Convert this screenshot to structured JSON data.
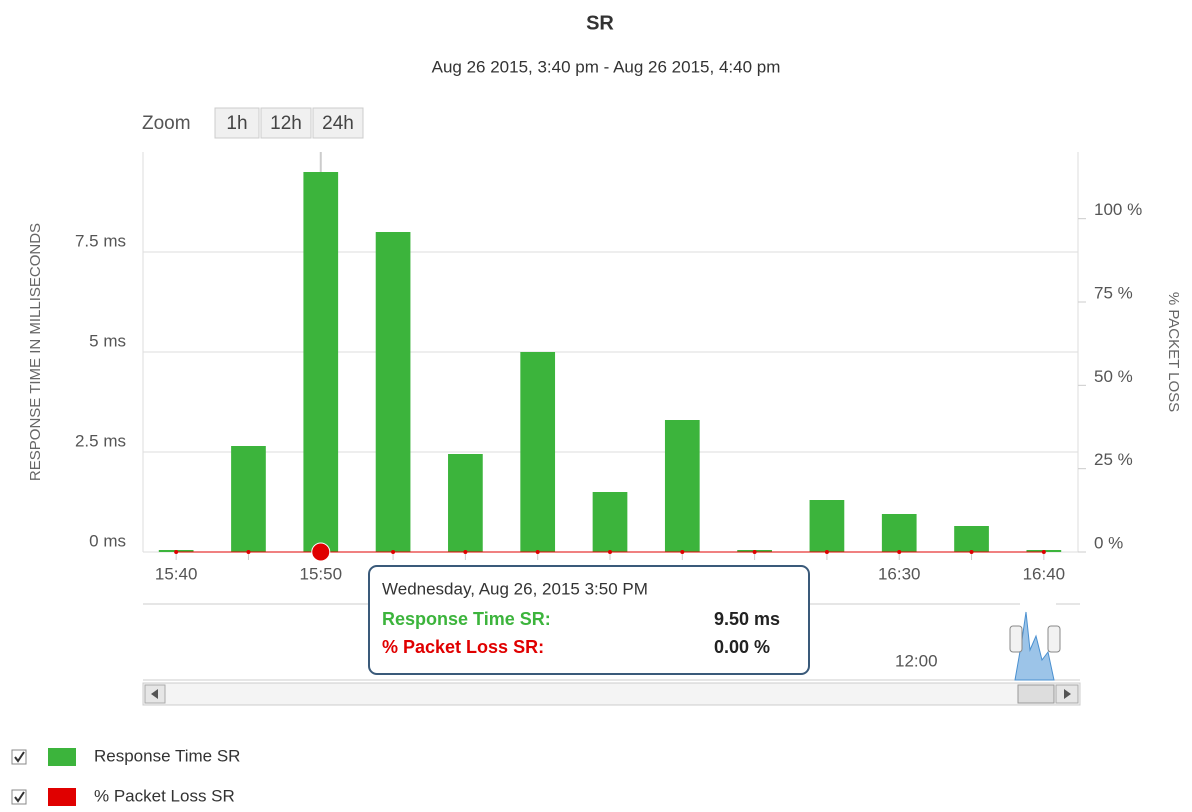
{
  "chart_data": {
    "type": "bar",
    "title": "SR",
    "subtitle": "Aug 26 2015, 3:40 pm - Aug 26 2015, 4:40 pm",
    "zoom": {
      "label": "Zoom",
      "buttons": [
        "1h",
        "12h",
        "24h"
      ]
    },
    "ylabel": "RESPONSE TIME IN MILLISECONDS",
    "y2label": "% PACKET LOSS",
    "categories": [
      "15:40",
      null,
      "15:50",
      null,
      null,
      null,
      null,
      null,
      null,
      null,
      "16:30",
      null,
      "16:40"
    ],
    "series": [
      {
        "name": "Response Time SR",
        "color": "#3cb43c",
        "values": [
          0.05,
          2.65,
          9.5,
          8.0,
          2.45,
          5.0,
          1.5,
          3.3,
          0.05,
          1.3,
          0.95,
          0.65,
          0.05
        ]
      },
      {
        "name": "% Packet Loss SR",
        "color": "#e00000",
        "axis": "y2",
        "values": [
          0,
          0,
          0,
          0,
          0,
          0,
          0,
          0,
          0,
          0,
          0,
          0,
          0
        ]
      }
    ],
    "ylim": [
      0,
      10
    ],
    "yticks": [
      {
        "value": 0,
        "label": "0 ms"
      },
      {
        "value": 2.5,
        "label": "2.5 ms"
      },
      {
        "value": 5,
        "label": "5 ms"
      },
      {
        "value": 7.5,
        "label": "7.5 ms"
      }
    ],
    "y2lim": [
      0,
      120
    ],
    "y2ticks": [
      {
        "value": 0,
        "label": "0 %"
      },
      {
        "value": 25,
        "label": "25 %"
      },
      {
        "value": 50,
        "label": "50 %"
      },
      {
        "value": 75,
        "label": "75 %"
      },
      {
        "value": 100,
        "label": "100 %"
      }
    ],
    "grid": true,
    "tooltip": {
      "header": "Wednesday, Aug 26, 2015 3:50 PM",
      "rows": [
        {
          "label": "Response Time SR:",
          "value": "9.50 ms"
        },
        {
          "label": "% Packet Loss SR:",
          "value": "0.00 %"
        }
      ]
    },
    "navigator_label": "12:00"
  }
}
